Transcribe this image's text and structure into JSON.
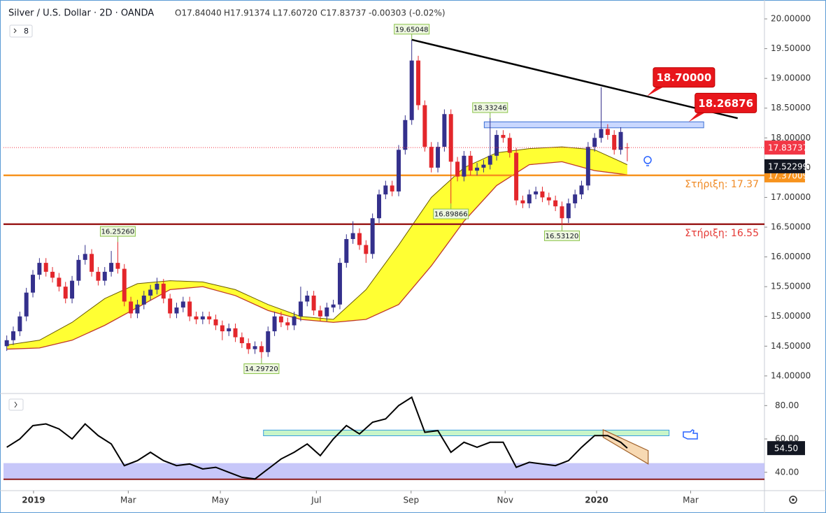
{
  "header": {
    "symbol": "Silver / U.S. Dollar · 2D · OANDA",
    "open": "O17.84040",
    "high": "H17.91374",
    "low": "L17.60720",
    "close": "C17.83737",
    "change": "-0.00303 (-0.02%)",
    "collapsed_count": "8"
  },
  "chart_data": {
    "type": "candlestick",
    "up_color": "#34308c",
    "down_color": "#e3262b",
    "candles": [
      [
        14.5,
        14.68,
        14.42,
        14.6
      ],
      [
        14.6,
        14.83,
        14.52,
        14.75
      ],
      [
        14.75,
        15.08,
        14.67,
        15.0
      ],
      [
        15.0,
        15.48,
        14.92,
        15.4
      ],
      [
        15.4,
        15.78,
        15.32,
        15.7
      ],
      [
        15.7,
        15.98,
        15.62,
        15.9
      ],
      [
        15.9,
        15.98,
        15.67,
        15.75
      ],
      [
        15.75,
        15.83,
        15.57,
        15.65
      ],
      [
        15.65,
        15.73,
        15.42,
        15.5
      ],
      [
        15.5,
        15.58,
        15.22,
        15.3
      ],
      [
        15.3,
        15.68,
        15.22,
        15.6
      ],
      [
        15.6,
        16.03,
        15.52,
        15.95
      ],
      [
        15.95,
        16.2,
        15.87,
        16.05
      ],
      [
        16.05,
        16.13,
        15.67,
        15.75
      ],
      [
        15.75,
        15.83,
        15.52,
        15.6
      ],
      [
        15.6,
        15.83,
        15.52,
        15.75
      ],
      [
        15.75,
        16.1,
        15.67,
        15.9
      ],
      [
        15.9,
        16.2526,
        15.72,
        15.8
      ],
      [
        15.8,
        15.88,
        15.17,
        15.25
      ],
      [
        15.25,
        15.33,
        14.97,
        15.05
      ],
      [
        15.05,
        15.28,
        14.97,
        15.2
      ],
      [
        15.2,
        15.43,
        15.12,
        15.35
      ],
      [
        15.35,
        15.53,
        15.27,
        15.45
      ],
      [
        15.45,
        15.65,
        15.37,
        15.55
      ],
      [
        15.55,
        15.63,
        15.22,
        15.3
      ],
      [
        15.3,
        15.38,
        14.97,
        15.05
      ],
      [
        15.05,
        15.23,
        14.97,
        15.15
      ],
      [
        15.15,
        15.33,
        15.07,
        15.25
      ],
      [
        15.25,
        15.33,
        14.92,
        15.0
      ],
      [
        15.0,
        15.08,
        14.87,
        14.95
      ],
      [
        14.95,
        15.08,
        14.87,
        15.0
      ],
      [
        15.0,
        15.08,
        14.87,
        14.95
      ],
      [
        14.95,
        15.03,
        14.77,
        14.85
      ],
      [
        14.85,
        14.93,
        14.6,
        14.75
      ],
      [
        14.75,
        14.88,
        14.67,
        14.8
      ],
      [
        14.8,
        14.88,
        14.57,
        14.65
      ],
      [
        14.65,
        14.73,
        14.47,
        14.55
      ],
      [
        14.55,
        14.63,
        14.37,
        14.45
      ],
      [
        14.45,
        14.58,
        14.37,
        14.5
      ],
      [
        14.5,
        14.58,
        14.2972,
        14.4
      ],
      [
        14.4,
        14.83,
        14.32,
        14.75
      ],
      [
        14.75,
        15.08,
        14.67,
        15.0
      ],
      [
        15.0,
        15.08,
        14.82,
        14.9
      ],
      [
        14.9,
        14.98,
        14.77,
        14.85
      ],
      [
        14.85,
        15.08,
        14.77,
        15.0
      ],
      [
        15.0,
        15.5,
        14.92,
        15.25
      ],
      [
        15.25,
        15.43,
        15.17,
        15.35
      ],
      [
        15.35,
        15.43,
        15.02,
        15.1
      ],
      [
        15.1,
        15.18,
        14.92,
        15.0
      ],
      [
        15.0,
        15.23,
        14.92,
        15.15
      ],
      [
        15.15,
        15.28,
        15.07,
        15.2
      ],
      [
        15.2,
        15.98,
        15.12,
        15.9
      ],
      [
        15.9,
        16.38,
        15.82,
        16.3
      ],
      [
        16.3,
        16.6,
        16.22,
        16.4
      ],
      [
        16.4,
        16.48,
        16.12,
        16.2
      ],
      [
        16.2,
        16.28,
        15.9,
        16.05
      ],
      [
        16.05,
        16.73,
        15.97,
        16.65
      ],
      [
        16.65,
        17.13,
        16.57,
        17.05
      ],
      [
        17.05,
        17.28,
        16.97,
        17.2
      ],
      [
        17.2,
        17.28,
        17.02,
        17.1
      ],
      [
        17.1,
        17.88,
        17.02,
        17.8
      ],
      [
        17.8,
        18.38,
        17.72,
        18.3
      ],
      [
        18.3,
        19.65048,
        18.22,
        19.3
      ],
      [
        19.3,
        19.38,
        18.47,
        18.55
      ],
      [
        18.55,
        18.63,
        17.77,
        17.85
      ],
      [
        17.85,
        17.93,
        17.42,
        17.5
      ],
      [
        17.5,
        17.93,
        17.42,
        17.85
      ],
      [
        17.85,
        18.48,
        17.77,
        18.4
      ],
      [
        18.4,
        18.48,
        16.89866,
        17.6
      ],
      [
        17.6,
        17.68,
        17.27,
        17.35
      ],
      [
        17.35,
        17.78,
        17.27,
        17.7
      ],
      [
        17.7,
        17.78,
        17.37,
        17.45
      ],
      [
        17.45,
        17.58,
        17.37,
        17.5
      ],
      [
        17.5,
        17.63,
        17.42,
        17.55
      ],
      [
        17.55,
        18.33246,
        17.47,
        17.7
      ],
      [
        17.7,
        18.13,
        17.62,
        18.05
      ],
      [
        18.05,
        18.13,
        17.92,
        18.0
      ],
      [
        18.0,
        18.08,
        17.67,
        17.75
      ],
      [
        17.75,
        17.83,
        16.87,
        16.95
      ],
      [
        16.95,
        17.03,
        16.82,
        16.9
      ],
      [
        16.9,
        17.13,
        16.82,
        17.05
      ],
      [
        17.05,
        17.18,
        16.97,
        17.1
      ],
      [
        17.1,
        17.18,
        16.92,
        17.0
      ],
      [
        17.0,
        17.08,
        16.87,
        16.95
      ],
      [
        16.95,
        17.03,
        16.77,
        16.85
      ],
      [
        16.85,
        16.93,
        16.5312,
        16.65
      ],
      [
        16.65,
        16.98,
        16.57,
        16.9
      ],
      [
        16.9,
        17.13,
        16.82,
        17.05
      ],
      [
        17.05,
        17.28,
        16.97,
        17.2
      ],
      [
        17.2,
        17.93,
        17.12,
        17.85
      ],
      [
        17.85,
        18.08,
        17.77,
        18.0
      ],
      [
        18.0,
        18.85,
        17.92,
        18.15
      ],
      [
        18.15,
        18.23,
        17.97,
        18.05
      ],
      [
        18.05,
        18.13,
        17.72,
        17.8
      ],
      [
        17.8,
        18.18,
        17.72,
        18.1
      ],
      [
        17.8404,
        17.91374,
        17.6072,
        17.83737
      ]
    ],
    "xlim": [
      -0.5,
      116
    ],
    "xticks": [
      {
        "value": 4.1,
        "label": "2019"
      },
      {
        "value": 18.6,
        "label": "Mar"
      },
      {
        "value": 32.7,
        "label": "May"
      },
      {
        "value": 47.4,
        "label": "Jul"
      },
      {
        "value": 61.9,
        "label": "Sep"
      },
      {
        "value": 76.3,
        "label": "Nov"
      },
      {
        "value": 90.3,
        "label": "2020"
      },
      {
        "value": 104.7,
        "label": "Mar"
      }
    ],
    "ylim": [
      13.74,
      20.2
    ],
    "yticks": [
      {
        "value": 14,
        "label": "14.00000"
      },
      {
        "value": 14.5,
        "label": "14.50000"
      },
      {
        "value": 15,
        "label": "15.00000"
      },
      {
        "value": 15.5,
        "label": "15.50000"
      },
      {
        "value": 16,
        "label": "16.00000"
      },
      {
        "value": 16.5,
        "label": "16.50000"
      },
      {
        "value": 17,
        "label": "17.00000"
      },
      {
        "value": 17.5,
        "label": "17.50000"
      },
      {
        "value": 18,
        "label": "18.00000"
      },
      {
        "value": 18.5,
        "label": "18.50000"
      },
      {
        "value": 19,
        "label": "19.00000"
      },
      {
        "value": 19.5,
        "label": "19.50000"
      },
      {
        "value": 20,
        "label": "20.00000"
      }
    ],
    "band": {
      "color": "#ffff33",
      "upper_color": "#6b5a00",
      "lower_color": "#c0392b",
      "x": [
        0,
        5,
        10,
        15,
        20,
        25,
        30,
        35,
        40,
        45,
        50,
        55,
        60,
        65,
        70,
        75,
        80,
        85,
        90,
        95
      ],
      "upper": [
        14.52,
        14.6,
        14.9,
        15.3,
        15.55,
        15.6,
        15.58,
        15.45,
        15.2,
        15.0,
        14.95,
        15.45,
        16.2,
        17.0,
        17.5,
        17.75,
        17.82,
        17.85,
        17.8,
        17.55
      ],
      "lower": [
        14.45,
        14.47,
        14.6,
        14.85,
        15.15,
        15.45,
        15.5,
        15.35,
        15.1,
        14.95,
        14.9,
        14.95,
        15.2,
        15.85,
        16.6,
        17.2,
        17.55,
        17.6,
        17.45,
        17.38
      ]
    },
    "last_color": "#f23645",
    "price_tags": [
      {
        "value": 17.52299,
        "color": "#131722"
      }
    ],
    "hlines": [
      {
        "value": 17.37009,
        "label": "Στήριξη: 17.37",
        "color": "#f7931e",
        "text_color": "#f08a24",
        "tag": true
      },
      {
        "value": 16.55,
        "label": "Στήριξη: 16.55",
        "color": "#9b1c1c",
        "text_color": "#e53935",
        "tag": false
      }
    ],
    "trendline": {
      "x": [
        62,
        111.9
      ],
      "values": [
        19.65048,
        18.33
      ],
      "color": "#000000"
    },
    "zone_box": {
      "x": [
        73.1,
        106.7
      ],
      "y": [
        18.17,
        18.27
      ],
      "color": "#c9d8ff"
    },
    "pivots": [
      {
        "x": 62,
        "value": 19.65048,
        "label": "19.65048",
        "position": "above"
      },
      {
        "x": 74,
        "value": 18.33246,
        "label": "18.33246",
        "position": "above"
      },
      {
        "x": 68,
        "value": 16.89866,
        "label": "16.89866",
        "position": "below"
      },
      {
        "x": 85,
        "value": 16.5312,
        "label": "16.53120",
        "position": "below"
      },
      {
        "x": 17,
        "value": 16.2526,
        "label": "16.25260",
        "position": "above"
      },
      {
        "x": 39,
        "value": 14.2972,
        "label": "14.29720",
        "position": "below"
      }
    ],
    "callouts": [
      {
        "x": 98,
        "value": 18.7,
        "label": "18.70000"
      },
      {
        "x": 104.4,
        "value": 18.26876,
        "label": "18.26876"
      }
    ],
    "oscillator": {
      "color": "#000000",
      "x": [
        0,
        2,
        4,
        6,
        8,
        10,
        12,
        14,
        16,
        18,
        20,
        22,
        24,
        26,
        28,
        30,
        32,
        34,
        36,
        38,
        40,
        42,
        44,
        46,
        48,
        50,
        52,
        54,
        56,
        58,
        60,
        62,
        64,
        66,
        68,
        70,
        72,
        74,
        76,
        78,
        80,
        82,
        84,
        86,
        88,
        90,
        92,
        94,
        95
      ],
      "values": [
        55,
        60,
        68,
        69,
        66,
        60,
        69,
        62,
        57,
        44,
        47,
        52,
        47,
        44,
        45,
        42,
        43,
        40,
        37,
        36,
        42,
        48,
        52,
        57,
        50,
        60,
        68,
        63,
        70,
        72,
        80,
        85,
        64,
        65,
        52,
        58,
        55,
        58,
        58,
        43,
        46,
        45,
        44,
        47,
        55,
        62,
        62,
        58,
        54.5
      ],
      "ylim": [
        29,
        86
      ],
      "yticks": [
        {
          "value": 40,
          "label": "40.00"
        },
        {
          "value": 60,
          "label": "60.00"
        },
        {
          "value": 80,
          "label": "80.00"
        }
      ],
      "last": {
        "value": 54.5,
        "label": "54.50"
      },
      "zone": [
        35.8,
        45.5
      ],
      "zone_color": "#b9b9f7",
      "floor_color": "#8b1a1a",
      "green_box": {
        "x": [
          39.3,
          101.4
        ],
        "y": [
          61.9,
          65.3
        ]
      },
      "channel": {
        "x": [
          91.3,
          98.2
        ],
        "upper": [
          65.5,
          53
        ],
        "lower": [
          61,
          45
        ]
      }
    }
  }
}
